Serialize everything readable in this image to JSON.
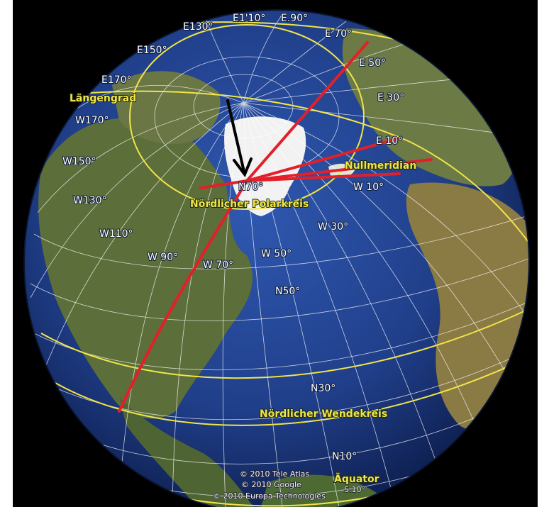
{
  "colors": {
    "background": "#000000",
    "ocean": "#203f8a",
    "grid_lines": "#ffffff",
    "yellow_circles": "#f1e44a",
    "red_arrows": "#e3202a",
    "black_arrow": "#000000",
    "greenland": "#f2f2f2",
    "land": "#5c6e3a"
  },
  "meridian_labels": {
    "e110": "E1'10°",
    "e90": "E.90°",
    "e130": "E130°",
    "e70": "E 70°",
    "e150": "E150°",
    "e50": "E 50°",
    "e170": "E170°",
    "e30": "E 30°",
    "w170": "W170°",
    "e10": "E 10°",
    "w150": "W150°",
    "w10": "W 10°",
    "w130": "W130°",
    "w110": "W110°",
    "w30": "W 30°",
    "w90": "W 90°",
    "w70": "W 70°",
    "w50": "W 50°"
  },
  "parallel_labels": {
    "n70": "N70°",
    "n50": "N50°",
    "n30": "N30°",
    "n10": "N10°",
    "s10": "S.10°"
  },
  "feature_labels": {
    "laengengrad": "Längengrad",
    "nullmeridian": "Nullmeridian",
    "polarkreis": "Nördlicher Polarkreis",
    "wendekreis": "Nördlicher Wendekreis",
    "aequator": "Äquator"
  },
  "attribution": {
    "line1": "© 2010 Tele Atlas",
    "line2": "© 2010 Google",
    "line3": "© 2010 Europa Technologies"
  }
}
